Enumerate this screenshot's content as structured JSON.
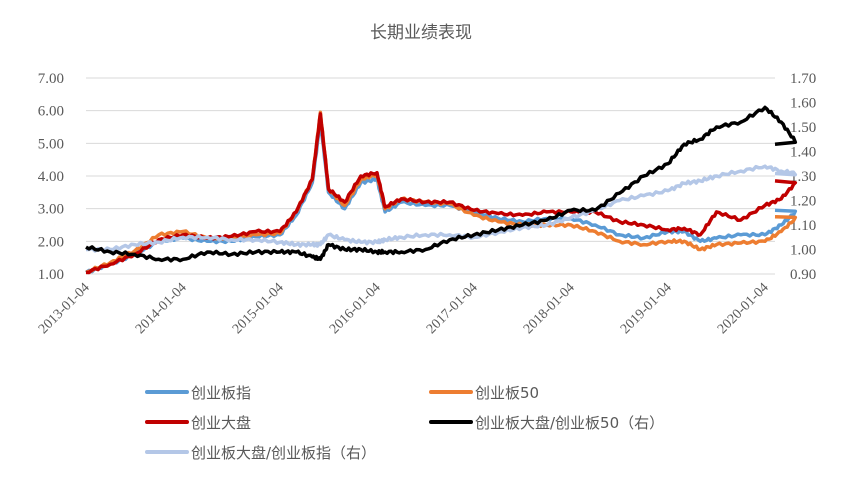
{
  "chart_data": {
    "type": "line",
    "title": "长期业绩表现",
    "xlabel": "",
    "ylabel_left": "",
    "ylabel_right": "",
    "x_ticks": [
      "2013-01-04",
      "2014-01-04",
      "2015-01-04",
      "2016-01-04",
      "2017-01-04",
      "2018-01-04",
      "2019-01-04",
      "2020-01-04"
    ],
    "y_left": {
      "ticks": [
        "1.00",
        "2.00",
        "3.00",
        "4.00",
        "5.00",
        "6.00",
        "7.00"
      ],
      "range": [
        1.0,
        7.0
      ]
    },
    "y_right": {
      "ticks": [
        "0.90",
        "1.00",
        "1.10",
        "1.20",
        "1.30",
        "1.40",
        "1.50",
        "1.60",
        "1.70"
      ],
      "range": [
        0.9,
        1.7
      ]
    },
    "grid": true,
    "legend_position": "bottom",
    "x": [
      "2013-01",
      "2013-04",
      "2013-07",
      "2013-10",
      "2014-01",
      "2014-04",
      "2014-07",
      "2014-10",
      "2015-01",
      "2015-03",
      "2015-05",
      "2015-06",
      "2015-07",
      "2015-09",
      "2015-11",
      "2016-01",
      "2016-02",
      "2016-04",
      "2016-07",
      "2016-10",
      "2017-01",
      "2017-04",
      "2017-07",
      "2017-10",
      "2018-01",
      "2018-04",
      "2018-07",
      "2018-10",
      "2019-01",
      "2019-03",
      "2019-05",
      "2019-07",
      "2019-10",
      "2020-01",
      "2020-03",
      "2020-05"
    ],
    "series": [
      {
        "name": "创业板指",
        "axis": "left",
        "color": "#5b9bd5",
        "values": [
          1.05,
          1.3,
          1.6,
          2.0,
          2.1,
          2.0,
          2.0,
          2.15,
          2.2,
          2.8,
          3.8,
          5.7,
          3.5,
          3.0,
          3.8,
          3.9,
          2.9,
          3.2,
          3.1,
          3.1,
          2.9,
          2.7,
          2.6,
          2.7,
          2.7,
          2.5,
          2.2,
          2.1,
          2.3,
          2.3,
          2.0,
          2.1,
          2.2,
          2.2,
          2.5,
          2.95
        ]
      },
      {
        "name": "创业板50",
        "axis": "left",
        "color": "#ed7d31",
        "values": [
          1.05,
          1.35,
          1.7,
          2.2,
          2.3,
          2.1,
          2.1,
          2.2,
          2.25,
          2.9,
          3.9,
          5.95,
          3.6,
          3.1,
          3.9,
          4.05,
          3.0,
          3.3,
          3.2,
          3.15,
          2.8,
          2.6,
          2.5,
          2.5,
          2.5,
          2.3,
          2.0,
          1.9,
          2.0,
          2.0,
          1.75,
          1.9,
          1.95,
          2.0,
          2.3,
          2.75
        ]
      },
      {
        "name": "创业大盘",
        "axis": "left",
        "color": "#c00000",
        "values": [
          1.05,
          1.3,
          1.6,
          2.05,
          2.2,
          2.1,
          2.15,
          2.3,
          2.3,
          2.9,
          3.9,
          5.9,
          3.6,
          3.2,
          4.0,
          4.1,
          3.05,
          3.3,
          3.2,
          3.2,
          2.95,
          2.85,
          2.8,
          2.9,
          2.9,
          2.9,
          2.6,
          2.5,
          2.35,
          2.4,
          2.2,
          2.9,
          2.65,
          3.1,
          3.3,
          3.85
        ]
      },
      {
        "name": "创业板大盘/创业板50（右）",
        "axis": "right",
        "color": "#000000",
        "values": [
          1.01,
          0.99,
          0.98,
          0.96,
          0.96,
          0.99,
          0.98,
          0.99,
          0.99,
          0.99,
          0.97,
          0.96,
          1.02,
          1.0,
          1.0,
          0.99,
          0.99,
          0.99,
          1.0,
          1.04,
          1.06,
          1.08,
          1.1,
          1.12,
          1.16,
          1.16,
          1.23,
          1.3,
          1.35,
          1.43,
          1.45,
          1.5,
          1.52,
          1.58,
          1.52,
          1.43
        ]
      },
      {
        "name": "创业板大盘/创业板指（右）",
        "axis": "right",
        "color": "#b4c7e7",
        "values": [
          1.0,
          1.0,
          1.02,
          1.03,
          1.05,
          1.05,
          1.04,
          1.04,
          1.03,
          1.02,
          1.02,
          1.02,
          1.06,
          1.04,
          1.03,
          1.03,
          1.04,
          1.05,
          1.06,
          1.06,
          1.05,
          1.07,
          1.09,
          1.1,
          1.13,
          1.16,
          1.2,
          1.22,
          1.24,
          1.27,
          1.28,
          1.3,
          1.32,
          1.34,
          1.32,
          1.31
        ]
      }
    ]
  },
  "legend": [
    {
      "label": "创业板指",
      "color": "#5b9bd5"
    },
    {
      "label": "创业板50",
      "color": "#ed7d31"
    },
    {
      "label": "创业大盘",
      "color": "#c00000"
    },
    {
      "label": "创业板大盘/创业板50（右）",
      "color": "#000000"
    },
    {
      "label": "创业板大盘/创业板指（右）",
      "color": "#b4c7e7"
    }
  ]
}
